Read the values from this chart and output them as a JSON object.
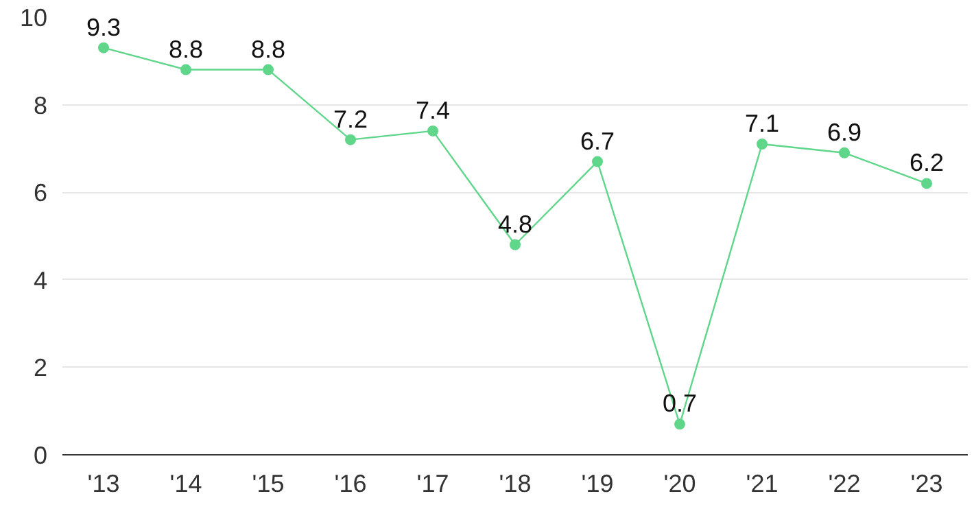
{
  "chart_data": {
    "type": "line",
    "categories": [
      "'13",
      "'14",
      "'15",
      "'16",
      "'17",
      "'18",
      "'19",
      "'20",
      "'21",
      "'22",
      "'23"
    ],
    "series": [
      {
        "color": "#5fd68a",
        "values": [
          9.3,
          8.8,
          8.8,
          7.2,
          7.4,
          4.8,
          6.7,
          0.7,
          7.1,
          6.9,
          6.2
        ]
      }
    ],
    "ylim": [
      0,
      10
    ],
    "yticks": [
      0,
      2,
      4,
      6,
      8,
      10
    ],
    "grid": "y",
    "marker": "circle",
    "line_style": "solid",
    "data_labels": true
  }
}
